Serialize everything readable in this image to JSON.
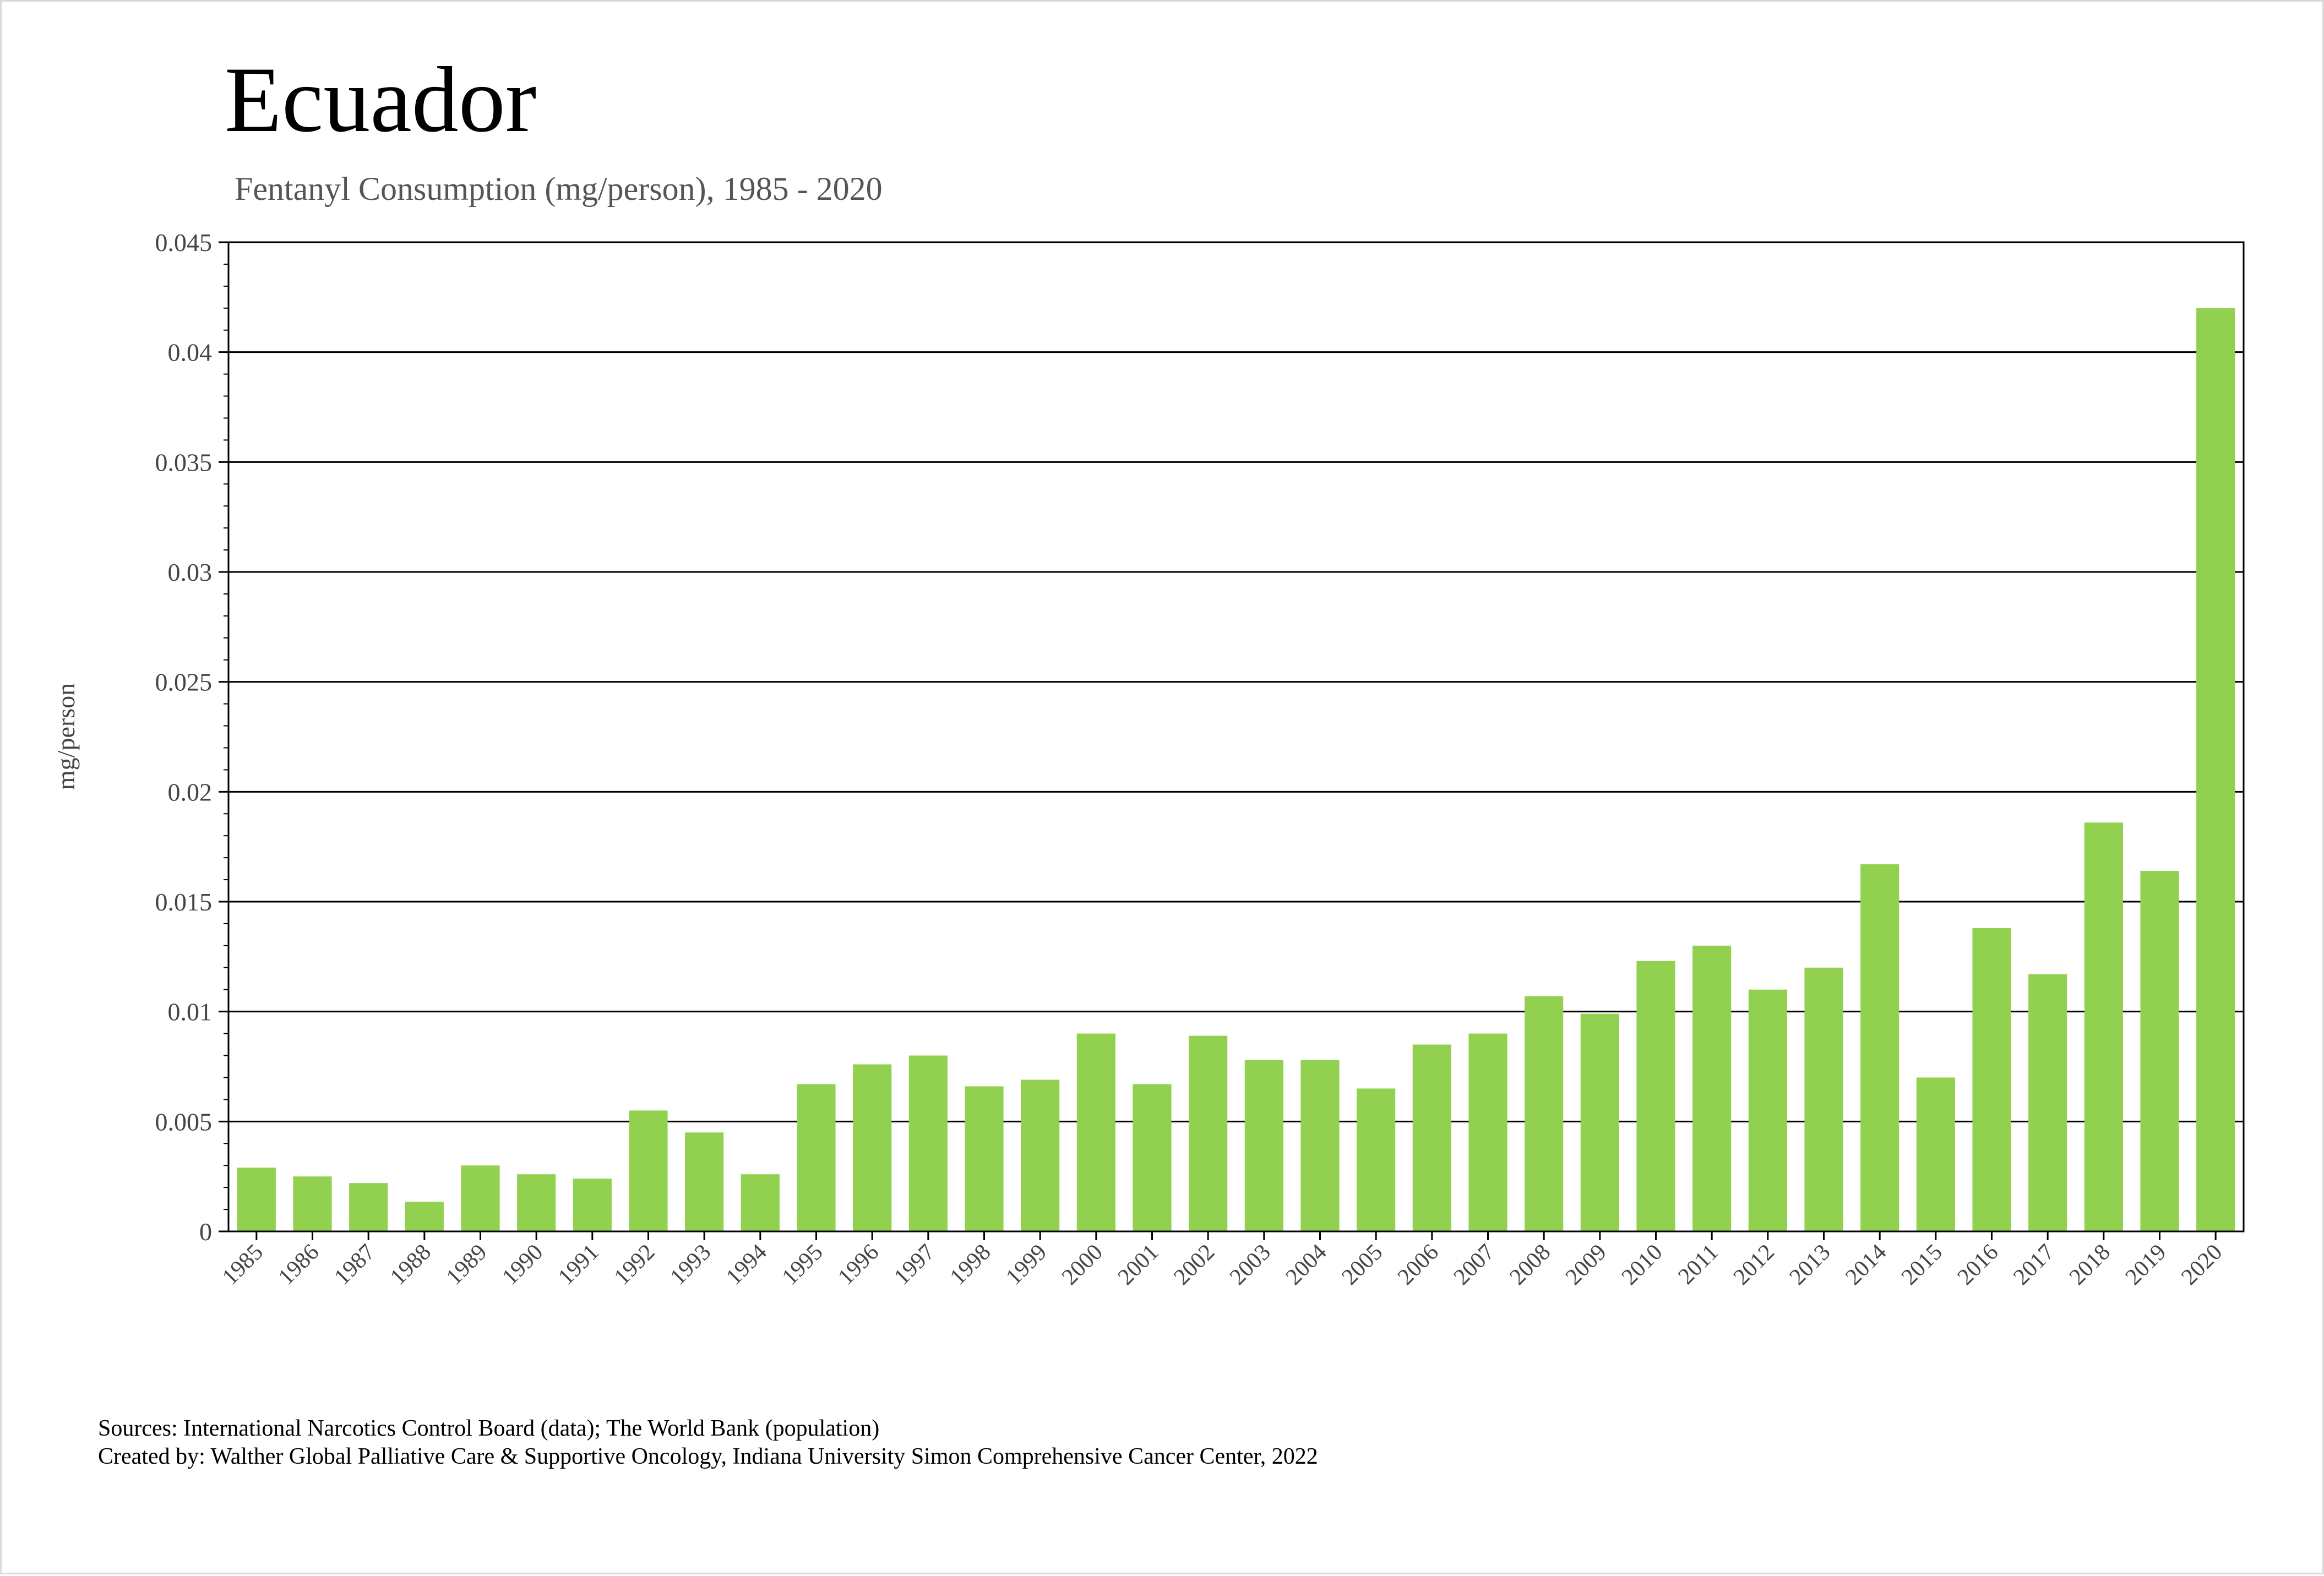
{
  "chart_data": {
    "type": "bar",
    "title": "Ecuador",
    "subtitle": "Fentanyl Consumption (mg/person), 1985 - 2020",
    "xlabel": "",
    "ylabel": "mg/person",
    "ylim": [
      0,
      0.045
    ],
    "yticks": [
      "0",
      "0.005",
      "0.01",
      "0.015",
      "0.02",
      "0.025",
      "0.03",
      "0.035",
      "0.04",
      "0.045"
    ],
    "grid": true,
    "bar_color": "#92D050",
    "categories": [
      "1985",
      "1986",
      "1987",
      "1988",
      "1989",
      "1990",
      "1991",
      "1992",
      "1993",
      "1994",
      "1995",
      "1996",
      "1997",
      "1998",
      "1999",
      "2000",
      "2001",
      "2002",
      "2003",
      "2004",
      "2005",
      "2006",
      "2007",
      "2008",
      "2009",
      "2010",
      "2011",
      "2012",
      "2013",
      "2014",
      "2015",
      "2016",
      "2017",
      "2018",
      "2019",
      "2020"
    ],
    "values": [
      0.0029,
      0.0025,
      0.0022,
      0.00135,
      0.003,
      0.0026,
      0.0024,
      0.0055,
      0.0045,
      0.0026,
      0.0067,
      0.0076,
      0.008,
      0.0066,
      0.0069,
      0.009,
      0.0067,
      0.0089,
      0.0078,
      0.0078,
      0.0065,
      0.0085,
      0.009,
      0.0107,
      0.0099,
      0.0123,
      0.013,
      0.011,
      0.012,
      0.0167,
      0.007,
      0.0138,
      0.0117,
      0.0186,
      0.0164,
      0.042
    ]
  },
  "footer": {
    "sources": "Sources: International Narcotics Control Board (data); The World Bank (population)",
    "created_by": "Created by: Walther Global Palliative Care & Supportive Oncology, Indiana University Simon Comprehensive Cancer Center, 2022"
  }
}
